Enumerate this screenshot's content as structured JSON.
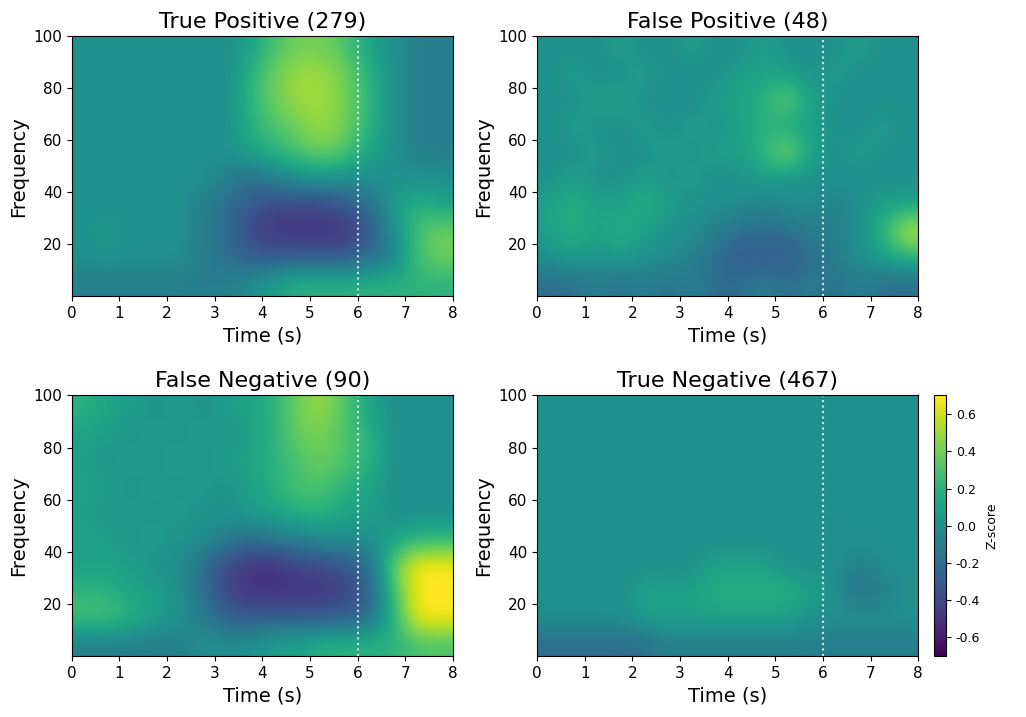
{
  "chart_data": [
    {
      "type": "heatmap",
      "title": "True Positive (279)",
      "xlabel": "Time (s)",
      "ylabel": "Frequency",
      "xlim": [
        0,
        8
      ],
      "xticks": [
        0,
        1,
        2,
        3,
        4,
        5,
        6,
        7,
        8
      ],
      "ylim": [
        0,
        100
      ],
      "yticks": [
        20,
        40,
        60,
        80,
        100
      ],
      "vline_x": 6,
      "cells": [
        [
          -0.1,
          -0.1,
          -0.1,
          -0.1,
          -0.1,
          -0.1,
          -0.1,
          0.0,
          0.1,
          0.2,
          0.2,
          0.2,
          0.2,
          0.2,
          0.2,
          0.2
        ],
        [
          0.0,
          0.0,
          0.0,
          0.0,
          0.0,
          -0.1,
          -0.2,
          -0.3,
          -0.3,
          -0.3,
          -0.3,
          -0.3,
          -0.2,
          -0.1,
          0.3,
          0.4
        ],
        [
          0.0,
          0.1,
          0.0,
          0.0,
          0.0,
          -0.1,
          -0.2,
          -0.4,
          -0.5,
          -0.5,
          -0.5,
          -0.5,
          -0.3,
          0.0,
          0.3,
          0.4
        ],
        [
          0.0,
          0.0,
          0.0,
          0.0,
          0.0,
          -0.1,
          -0.2,
          -0.3,
          -0.4,
          -0.4,
          -0.4,
          -0.3,
          -0.2,
          0.1,
          0.2,
          0.1
        ],
        [
          0.0,
          0.0,
          0.0,
          0.0,
          0.0,
          0.0,
          -0.1,
          -0.2,
          -0.1,
          0.0,
          0.0,
          0.0,
          0.0,
          0.0,
          0.0,
          0.0
        ],
        [
          0.0,
          0.0,
          0.0,
          0.0,
          0.0,
          0.0,
          0.0,
          0.1,
          0.2,
          0.3,
          0.4,
          0.3,
          0.1,
          0.0,
          -0.1,
          -0.1
        ],
        [
          0.0,
          0.0,
          0.0,
          0.0,
          0.0,
          0.0,
          0.0,
          0.2,
          0.3,
          0.4,
          0.5,
          0.4,
          0.2,
          0.0,
          -0.1,
          -0.1
        ],
        [
          0.0,
          0.0,
          0.0,
          0.0,
          0.0,
          0.0,
          0.0,
          0.2,
          0.4,
          0.5,
          0.5,
          0.4,
          0.2,
          0.0,
          -0.1,
          -0.1
        ],
        [
          0.0,
          0.0,
          0.0,
          0.0,
          0.0,
          0.0,
          0.0,
          0.2,
          0.4,
          0.5,
          0.5,
          0.4,
          0.2,
          0.0,
          -0.1,
          -0.1
        ],
        [
          0.0,
          0.0,
          0.0,
          0.0,
          0.0,
          0.0,
          0.0,
          0.1,
          0.3,
          0.4,
          0.4,
          0.3,
          0.1,
          0.0,
          -0.1,
          -0.1
        ]
      ]
    },
    {
      "type": "heatmap",
      "title": "False Positive (48)",
      "xlabel": "Time (s)",
      "ylabel": "Frequency",
      "xlim": [
        0,
        8
      ],
      "xticks": [
        0,
        1,
        2,
        3,
        4,
        5,
        6,
        7,
        8
      ],
      "ylim": [
        0,
        100
      ],
      "yticks": [
        20,
        40,
        60,
        80,
        100
      ],
      "vline_x": 6,
      "cells": [
        [
          -0.2,
          -0.2,
          -0.1,
          -0.2,
          -0.1,
          -0.2,
          -0.1,
          -0.2,
          -0.2,
          -0.1,
          -0.2,
          -0.1,
          -0.2,
          -0.1,
          -0.2,
          -0.2
        ],
        [
          0.0,
          0.1,
          0.0,
          0.1,
          0.0,
          0.0,
          -0.1,
          -0.2,
          -0.3,
          -0.3,
          -0.3,
          -0.2,
          -0.1,
          0.0,
          0.1,
          0.2
        ],
        [
          0.1,
          0.2,
          0.1,
          0.2,
          0.1,
          0.0,
          0.0,
          -0.1,
          -0.2,
          -0.2,
          -0.2,
          -0.1,
          -0.1,
          0.0,
          0.2,
          0.6
        ],
        [
          0.1,
          0.2,
          0.1,
          0.1,
          0.2,
          0.1,
          0.0,
          0.0,
          0.0,
          -0.1,
          0.0,
          0.0,
          -0.1,
          0.0,
          0.1,
          0.1
        ],
        [
          0.0,
          0.1,
          0.0,
          0.0,
          0.1,
          0.0,
          0.1,
          0.0,
          0.0,
          0.1,
          0.0,
          0.0,
          0.0,
          0.0,
          0.0,
          0.0
        ],
        [
          0.0,
          0.0,
          0.1,
          0.0,
          0.0,
          0.1,
          0.0,
          0.1,
          0.1,
          0.2,
          0.5,
          0.1,
          0.0,
          0.1,
          0.0,
          0.0
        ],
        [
          0.0,
          0.1,
          0.0,
          0.0,
          0.1,
          0.0,
          0.1,
          0.0,
          0.1,
          0.2,
          0.1,
          0.1,
          0.0,
          0.0,
          0.1,
          0.0
        ],
        [
          0.0,
          0.0,
          0.1,
          0.1,
          0.0,
          0.0,
          0.0,
          0.1,
          0.1,
          0.2,
          0.4,
          0.1,
          0.0,
          0.0,
          0.0,
          0.0
        ],
        [
          0.0,
          0.1,
          0.0,
          0.0,
          0.1,
          0.0,
          0.0,
          0.0,
          0.1,
          0.1,
          0.1,
          0.0,
          0.1,
          0.0,
          0.0,
          0.0
        ],
        [
          0.0,
          0.0,
          0.0,
          0.1,
          0.0,
          0.0,
          0.1,
          0.0,
          0.0,
          0.1,
          0.0,
          0.0,
          0.0,
          0.1,
          0.0,
          0.0
        ]
      ]
    },
    {
      "type": "heatmap",
      "title": "False Negative (90)",
      "xlabel": "Time (s)",
      "ylabel": "Frequency",
      "xlim": [
        0,
        8
      ],
      "xticks": [
        0,
        1,
        2,
        3,
        4,
        5,
        6,
        7,
        8
      ],
      "ylim": [
        0,
        100
      ],
      "yticks": [
        20,
        40,
        60,
        80,
        100
      ],
      "vline_x": 6,
      "cells": [
        [
          -0.1,
          -0.1,
          -0.1,
          -0.1,
          -0.1,
          0.0,
          0.0,
          0.0,
          0.1,
          0.1,
          0.2,
          0.2,
          0.2,
          0.2,
          0.3,
          0.3
        ],
        [
          0.3,
          0.3,
          0.2,
          0.1,
          0.0,
          -0.1,
          -0.3,
          -0.3,
          -0.3,
          -0.3,
          -0.3,
          -0.3,
          -0.2,
          0.2,
          0.7,
          0.7
        ],
        [
          0.2,
          0.2,
          0.1,
          0.1,
          0.0,
          -0.2,
          -0.4,
          -0.5,
          -0.5,
          -0.5,
          -0.5,
          -0.4,
          -0.3,
          0.3,
          0.7,
          0.7
        ],
        [
          0.1,
          0.1,
          0.1,
          0.0,
          0.0,
          -0.2,
          -0.4,
          -0.5,
          -0.5,
          -0.4,
          -0.4,
          -0.3,
          -0.2,
          0.4,
          0.7,
          0.7
        ],
        [
          0.1,
          0.1,
          0.0,
          0.1,
          0.0,
          0.0,
          -0.1,
          -0.2,
          -0.1,
          -0.1,
          0.0,
          0.0,
          0.0,
          0.1,
          0.2,
          0.2
        ],
        [
          0.1,
          0.0,
          0.1,
          0.0,
          0.1,
          0.0,
          0.0,
          0.1,
          0.1,
          0.2,
          0.2,
          0.1,
          0.1,
          0.0,
          0.0,
          0.0
        ],
        [
          0.1,
          0.1,
          0.0,
          0.1,
          0.0,
          0.1,
          0.0,
          0.1,
          0.2,
          0.3,
          0.3,
          0.2,
          0.1,
          0.0,
          0.0,
          0.0
        ],
        [
          0.1,
          0.0,
          0.1,
          0.0,
          0.1,
          0.0,
          0.1,
          0.1,
          0.2,
          0.3,
          0.4,
          0.3,
          0.2,
          0.0,
          0.0,
          0.0
        ],
        [
          0.1,
          0.1,
          0.0,
          0.1,
          0.0,
          0.1,
          0.0,
          0.1,
          0.2,
          0.4,
          0.4,
          0.3,
          0.2,
          0.0,
          0.0,
          0.0
        ],
        [
          0.2,
          0.1,
          0.1,
          0.0,
          0.1,
          0.0,
          0.1,
          0.1,
          0.2,
          0.4,
          0.5,
          0.3,
          0.1,
          0.0,
          0.0,
          0.0
        ]
      ]
    },
    {
      "type": "heatmap",
      "title": "True Negative (467)",
      "xlabel": "Time (s)",
      "ylabel": "Frequency",
      "xlim": [
        0,
        8
      ],
      "xticks": [
        0,
        1,
        2,
        3,
        4,
        5,
        6,
        7,
        8
      ],
      "ylim": [
        0,
        100
      ],
      "yticks": [
        20,
        40,
        60,
        80,
        100
      ],
      "vline_x": 6,
      "colorbar_label": "Z-score",
      "colorbar_range": [
        -0.7,
        0.7
      ],
      "colorbar_ticks": [
        -0.6,
        -0.4,
        -0.2,
        0.0,
        0.2,
        0.4,
        0.6
      ],
      "cells": [
        [
          -0.2,
          -0.2,
          -0.2,
          -0.2,
          -0.2,
          -0.1,
          -0.1,
          -0.1,
          -0.1,
          -0.1,
          -0.1,
          -0.1,
          -0.1,
          -0.1,
          -0.1,
          -0.1
        ],
        [
          0.0,
          0.0,
          0.0,
          0.0,
          0.1,
          0.1,
          0.1,
          0.1,
          0.1,
          0.1,
          0.1,
          0.0,
          0.0,
          0.0,
          0.0,
          0.0
        ],
        [
          0.0,
          0.0,
          0.0,
          0.0,
          0.1,
          0.1,
          0.1,
          0.2,
          0.2,
          0.2,
          0.2,
          0.1,
          0.0,
          -0.2,
          -0.1,
          0.0
        ],
        [
          0.0,
          0.0,
          0.0,
          0.0,
          0.0,
          0.0,
          0.0,
          0.1,
          0.1,
          0.1,
          0.0,
          0.0,
          0.0,
          -0.1,
          0.0,
          0.0
        ],
        [
          0.0,
          0.0,
          0.0,
          0.0,
          0.0,
          0.0,
          0.0,
          0.0,
          0.0,
          0.0,
          0.0,
          0.0,
          0.0,
          0.0,
          0.0,
          0.0
        ],
        [
          0.0,
          0.0,
          0.0,
          0.0,
          0.0,
          0.0,
          0.0,
          0.0,
          0.0,
          0.0,
          0.0,
          0.0,
          0.0,
          0.0,
          0.0,
          0.0
        ],
        [
          0.0,
          0.0,
          0.0,
          0.0,
          0.0,
          0.0,
          0.0,
          0.0,
          0.0,
          0.0,
          0.0,
          0.0,
          0.0,
          0.0,
          0.0,
          0.0
        ],
        [
          0.0,
          0.0,
          0.0,
          0.0,
          0.0,
          0.0,
          0.0,
          0.0,
          0.0,
          0.0,
          0.0,
          0.0,
          0.0,
          0.0,
          0.0,
          0.0
        ],
        [
          0.0,
          0.0,
          0.0,
          0.0,
          0.0,
          0.0,
          0.0,
          0.0,
          0.0,
          0.0,
          0.0,
          0.0,
          0.0,
          0.0,
          0.0,
          0.0
        ],
        [
          0.0,
          0.0,
          0.0,
          0.0,
          0.0,
          0.0,
          0.0,
          0.0,
          0.0,
          0.0,
          0.0,
          0.0,
          0.0,
          0.0,
          0.0,
          0.0
        ]
      ]
    }
  ]
}
